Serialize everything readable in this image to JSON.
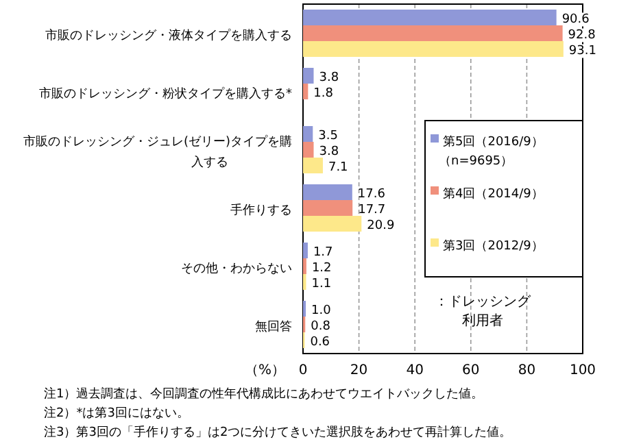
{
  "chart_data": {
    "type": "bar",
    "orientation": "horizontal",
    "xlabel": "（%）",
    "categories": [
      "市販のドレッシング・液体タイプを購入する",
      "市販のドレッシング・粉状タイプを購入する*",
      "市販のドレッシング・ジュレ(ゼリー)タイプを購入する",
      "手作りする",
      "その他・わからない",
      "無回答"
    ],
    "series": [
      {
        "name": "第5回（2016/9）",
        "color": "#8f98d8",
        "values": [
          90.6,
          3.8,
          3.5,
          17.6,
          1.7,
          1.0
        ],
        "value_labels": [
          "90.6",
          "3.8",
          "3.5",
          "17.6",
          "1.7",
          "1.0"
        ]
      },
      {
        "name": "第4回（2014/9）",
        "color": "#f0907c",
        "values": [
          92.8,
          1.8,
          3.8,
          17.7,
          1.2,
          0.8
        ]
      },
      {
        "name": "第3回（2012/9）",
        "color": "#fde88a",
        "values": [
          93.1,
          null,
          7.1,
          20.9,
          1.1,
          0.6
        ]
      }
    ],
    "xlim": [
      0,
      100
    ],
    "xticks": [
      0,
      20,
      40,
      60,
      80,
      100
    ],
    "grid": "x",
    "legend": "right",
    "data_labels": true,
    "annotations": [
      "（n=9695）",
      "：ドレッシング利用者",
      "注1）過去調査は、今回調査の性年代構成比にあわせてウエイトバックした値。",
      "注2）*は第3回にはない。",
      "注3）第3回の「手作りする」は2つに分けてきいた選択肢をあわせて再計算した値。"
    ]
  }
}
